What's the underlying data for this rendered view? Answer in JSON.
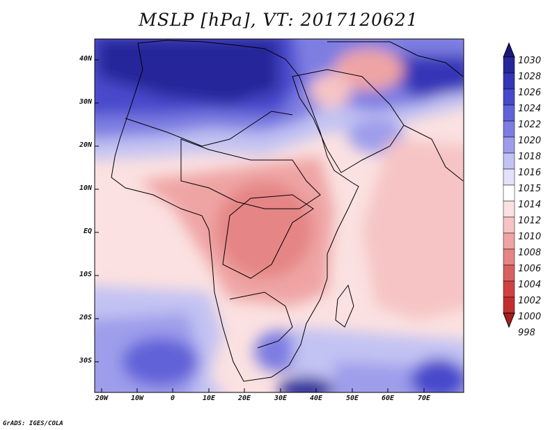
{
  "title": "MSLP [hPa], VT: 2017120621",
  "credit": "GrADS: IGES/COLA",
  "map": {
    "type": "filled-contour-map",
    "variable": "Mean sea level pressure",
    "units": "hPa",
    "lon_range": [
      -23,
      80
    ],
    "lat_range": [
      -37,
      45
    ],
    "lat_ticks": [
      {
        "value": 40,
        "label": "40N"
      },
      {
        "value": 30,
        "label": "30N"
      },
      {
        "value": 20,
        "label": "20N"
      },
      {
        "value": 10,
        "label": "10N"
      },
      {
        "value": 0,
        "label": "EQ"
      },
      {
        "value": -10,
        "label": "10S"
      },
      {
        "value": -20,
        "label": "20S"
      },
      {
        "value": -30,
        "label": "30S"
      }
    ],
    "lon_ticks": [
      {
        "value": -20,
        "label": "20W"
      },
      {
        "value": -10,
        "label": "10W"
      },
      {
        "value": 0,
        "label": "0"
      },
      {
        "value": 10,
        "label": "10E"
      },
      {
        "value": 20,
        "label": "20E"
      },
      {
        "value": 30,
        "label": "30E"
      },
      {
        "value": 40,
        "label": "40E"
      },
      {
        "value": 50,
        "label": "50E"
      },
      {
        "value": 60,
        "label": "60E"
      },
      {
        "value": 70,
        "label": "70E"
      }
    ]
  },
  "colorbar": {
    "levels": [
      "1030",
      "1028",
      "1026",
      "1024",
      "1022",
      "1020",
      "1018",
      "1016",
      "1015",
      "1014",
      "1012",
      "1010",
      "1008",
      "1006",
      "1004",
      "1002",
      "1000",
      "998"
    ],
    "colors": [
      "#1a1a7a",
      "#27279a",
      "#3535b8",
      "#4848cc",
      "#6262d8",
      "#7d7de2",
      "#9d9deb",
      "#c2c2f3",
      "#e2e2fa",
      "#ffffff",
      "#fbe1e1",
      "#f6c4c4",
      "#efa4a4",
      "#e58585",
      "#d96060",
      "#cf4242",
      "#c22e2e",
      "#a81e1e"
    ]
  }
}
